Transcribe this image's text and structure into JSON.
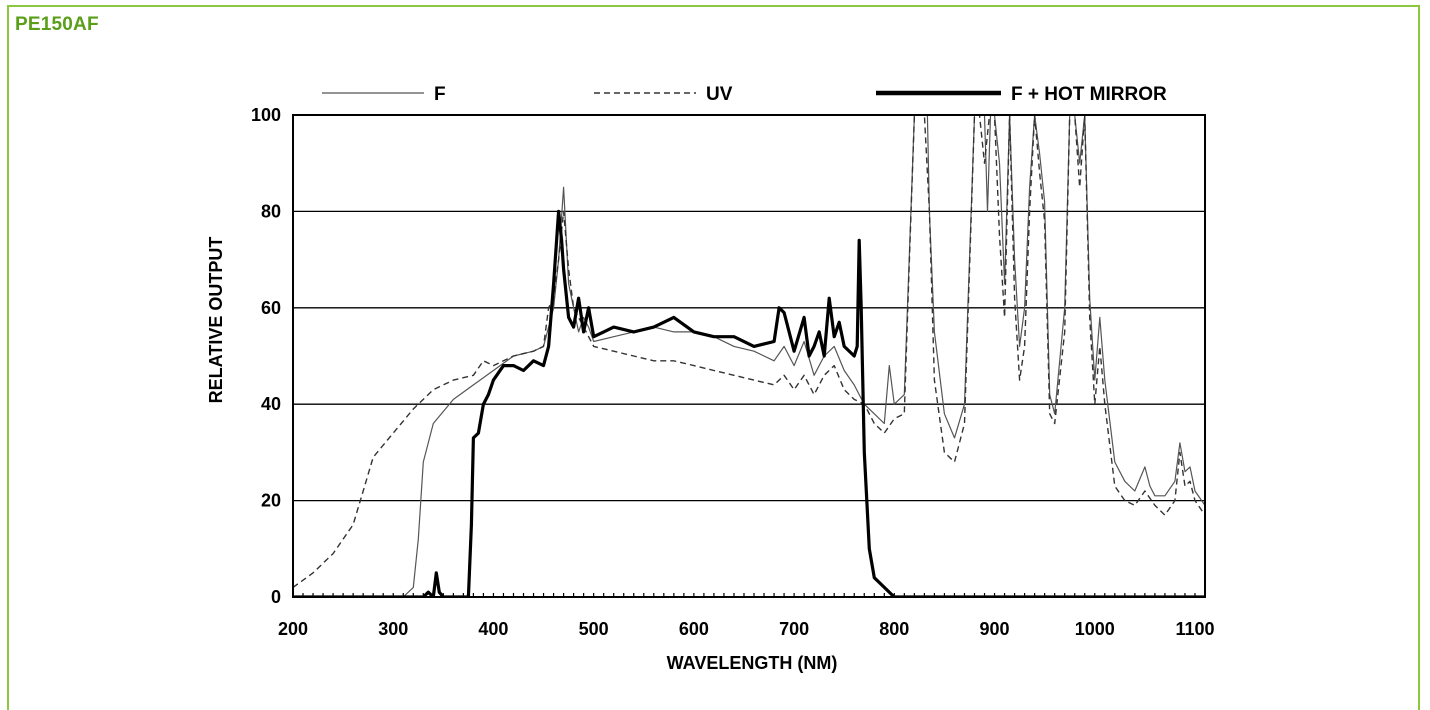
{
  "panel": {
    "title": "PE150AF",
    "border_color": "#8dc63f",
    "title_color": "#5a9e1a"
  },
  "chart_data": {
    "type": "line",
    "title": "",
    "xlabel": "WAVELENGTH (NM)",
    "ylabel": "RELATIVE OUTPUT",
    "xlim": [
      200,
      1110
    ],
    "ylim": [
      0,
      100
    ],
    "xticks": [
      200,
      300,
      400,
      500,
      600,
      700,
      800,
      900,
      1000,
      1100
    ],
    "yticks": [
      0,
      20,
      40,
      60,
      80,
      100
    ],
    "grid": "horizontal",
    "legend_position": "top",
    "series": [
      {
        "name": "F",
        "style": "thin",
        "color": "#555555",
        "points": [
          [
            200,
            0
          ],
          [
            310,
            0
          ],
          [
            320,
            2
          ],
          [
            325,
            12
          ],
          [
            330,
            28
          ],
          [
            340,
            36
          ],
          [
            360,
            41
          ],
          [
            380,
            44
          ],
          [
            400,
            47
          ],
          [
            420,
            50
          ],
          [
            440,
            51
          ],
          [
            450,
            52
          ],
          [
            455,
            56
          ],
          [
            460,
            60
          ],
          [
            465,
            70
          ],
          [
            470,
            85
          ],
          [
            475,
            65
          ],
          [
            480,
            60
          ],
          [
            485,
            55
          ],
          [
            490,
            58
          ],
          [
            495,
            56
          ],
          [
            500,
            53
          ],
          [
            520,
            54
          ],
          [
            540,
            55
          ],
          [
            560,
            56
          ],
          [
            580,
            55
          ],
          [
            600,
            55
          ],
          [
            620,
            54
          ],
          [
            640,
            52
          ],
          [
            660,
            51
          ],
          [
            680,
            49
          ],
          [
            690,
            52
          ],
          [
            700,
            48
          ],
          [
            710,
            53
          ],
          [
            720,
            46
          ],
          [
            730,
            50
          ],
          [
            740,
            52
          ],
          [
            750,
            47
          ],
          [
            760,
            44
          ],
          [
            765,
            42
          ],
          [
            770,
            40
          ],
          [
            780,
            38
          ],
          [
            790,
            36
          ],
          [
            795,
            48
          ],
          [
            800,
            40
          ],
          [
            810,
            42
          ],
          [
            820,
            100
          ],
          [
            830,
            100
          ],
          [
            833,
            100
          ],
          [
            835,
            80
          ],
          [
            840,
            55
          ],
          [
            850,
            38
          ],
          [
            860,
            33
          ],
          [
            870,
            40
          ],
          [
            880,
            100
          ],
          [
            890,
            100
          ],
          [
            893,
            80
          ],
          [
            896,
            100
          ],
          [
            900,
            100
          ],
          [
            905,
            90
          ],
          [
            910,
            65
          ],
          [
            915,
            100
          ],
          [
            920,
            70
          ],
          [
            925,
            52
          ],
          [
            930,
            60
          ],
          [
            935,
            85
          ],
          [
            940,
            100
          ],
          [
            945,
            92
          ],
          [
            950,
            82
          ],
          [
            955,
            42
          ],
          [
            960,
            38
          ],
          [
            970,
            60
          ],
          [
            975,
            100
          ],
          [
            980,
            100
          ],
          [
            985,
            90
          ],
          [
            990,
            100
          ],
          [
            995,
            62
          ],
          [
            1000,
            45
          ],
          [
            1005,
            58
          ],
          [
            1010,
            45
          ],
          [
            1020,
            28
          ],
          [
            1030,
            24
          ],
          [
            1040,
            22
          ],
          [
            1050,
            27
          ],
          [
            1055,
            23
          ],
          [
            1060,
            21
          ],
          [
            1070,
            21
          ],
          [
            1080,
            24
          ],
          [
            1085,
            32
          ],
          [
            1090,
            26
          ],
          [
            1095,
            27
          ],
          [
            1100,
            22
          ],
          [
            1110,
            19
          ]
        ]
      },
      {
        "name": "UV",
        "style": "dashed",
        "color": "#333333",
        "points": [
          [
            200,
            2
          ],
          [
            220,
            5
          ],
          [
            240,
            9
          ],
          [
            260,
            15
          ],
          [
            270,
            22
          ],
          [
            280,
            29
          ],
          [
            300,
            34
          ],
          [
            320,
            39
          ],
          [
            340,
            43
          ],
          [
            360,
            45
          ],
          [
            380,
            46
          ],
          [
            390,
            49
          ],
          [
            400,
            48
          ],
          [
            420,
            50
          ],
          [
            440,
            51
          ],
          [
            450,
            52
          ],
          [
            455,
            60
          ],
          [
            460,
            62
          ],
          [
            465,
            70
          ],
          [
            470,
            80
          ],
          [
            475,
            68
          ],
          [
            480,
            60
          ],
          [
            490,
            56
          ],
          [
            500,
            52
          ],
          [
            520,
            51
          ],
          [
            540,
            50
          ],
          [
            560,
            49
          ],
          [
            580,
            49
          ],
          [
            600,
            48
          ],
          [
            620,
            47
          ],
          [
            640,
            46
          ],
          [
            660,
            45
          ],
          [
            680,
            44
          ],
          [
            690,
            46
          ],
          [
            700,
            43
          ],
          [
            710,
            46
          ],
          [
            720,
            42
          ],
          [
            730,
            46
          ],
          [
            740,
            48
          ],
          [
            750,
            43
          ],
          [
            760,
            41
          ],
          [
            770,
            40
          ],
          [
            780,
            36
          ],
          [
            790,
            34
          ],
          [
            800,
            37
          ],
          [
            810,
            38
          ],
          [
            815,
            70
          ],
          [
            820,
            100
          ],
          [
            830,
            100
          ],
          [
            835,
            80
          ],
          [
            840,
            45
          ],
          [
            850,
            30
          ],
          [
            860,
            28
          ],
          [
            870,
            36
          ],
          [
            880,
            100
          ],
          [
            885,
            100
          ],
          [
            890,
            90
          ],
          [
            895,
            100
          ],
          [
            900,
            100
          ],
          [
            905,
            75
          ],
          [
            910,
            58
          ],
          [
            915,
            100
          ],
          [
            920,
            62
          ],
          [
            925,
            45
          ],
          [
            930,
            52
          ],
          [
            935,
            80
          ],
          [
            940,
            100
          ],
          [
            945,
            88
          ],
          [
            950,
            78
          ],
          [
            955,
            38
          ],
          [
            960,
            36
          ],
          [
            970,
            55
          ],
          [
            975,
            100
          ],
          [
            980,
            100
          ],
          [
            985,
            85
          ],
          [
            990,
            100
          ],
          [
            995,
            58
          ],
          [
            1000,
            40
          ],
          [
            1005,
            52
          ],
          [
            1010,
            40
          ],
          [
            1020,
            23
          ],
          [
            1030,
            20
          ],
          [
            1040,
            19
          ],
          [
            1050,
            22
          ],
          [
            1060,
            19
          ],
          [
            1070,
            17
          ],
          [
            1080,
            20
          ],
          [
            1085,
            30
          ],
          [
            1090,
            23
          ],
          [
            1095,
            24
          ],
          [
            1100,
            20
          ],
          [
            1110,
            17
          ]
        ]
      },
      {
        "name": "F + HOT MIRROR",
        "style": "thick",
        "color": "#000000",
        "points": [
          [
            200,
            0
          ],
          [
            330,
            0
          ],
          [
            335,
            1
          ],
          [
            340,
            0
          ],
          [
            343,
            5
          ],
          [
            346,
            1
          ],
          [
            350,
            0
          ],
          [
            375,
            0
          ],
          [
            378,
            15
          ],
          [
            380,
            33
          ],
          [
            385,
            34
          ],
          [
            390,
            40
          ],
          [
            395,
            42
          ],
          [
            400,
            45
          ],
          [
            410,
            48
          ],
          [
            420,
            48
          ],
          [
            430,
            47
          ],
          [
            440,
            49
          ],
          [
            450,
            48
          ],
          [
            455,
            52
          ],
          [
            460,
            65
          ],
          [
            465,
            80
          ],
          [
            468,
            74
          ],
          [
            470,
            68
          ],
          [
            475,
            58
          ],
          [
            480,
            56
          ],
          [
            485,
            62
          ],
          [
            490,
            55
          ],
          [
            495,
            60
          ],
          [
            500,
            54
          ],
          [
            510,
            55
          ],
          [
            520,
            56
          ],
          [
            540,
            55
          ],
          [
            560,
            56
          ],
          [
            580,
            58
          ],
          [
            600,
            55
          ],
          [
            620,
            54
          ],
          [
            640,
            54
          ],
          [
            660,
            52
          ],
          [
            680,
            53
          ],
          [
            685,
            60
          ],
          [
            690,
            59
          ],
          [
            695,
            55
          ],
          [
            700,
            51
          ],
          [
            710,
            58
          ],
          [
            715,
            50
          ],
          [
            720,
            52
          ],
          [
            725,
            55
          ],
          [
            730,
            50
          ],
          [
            735,
            62
          ],
          [
            740,
            54
          ],
          [
            745,
            57
          ],
          [
            750,
            52
          ],
          [
            760,
            50
          ],
          [
            763,
            52
          ],
          [
            765,
            74
          ],
          [
            767,
            60
          ],
          [
            770,
            30
          ],
          [
            775,
            10
          ],
          [
            780,
            4
          ],
          [
            790,
            2
          ],
          [
            800,
            0
          ],
          [
            1110,
            0
          ]
        ]
      }
    ]
  }
}
